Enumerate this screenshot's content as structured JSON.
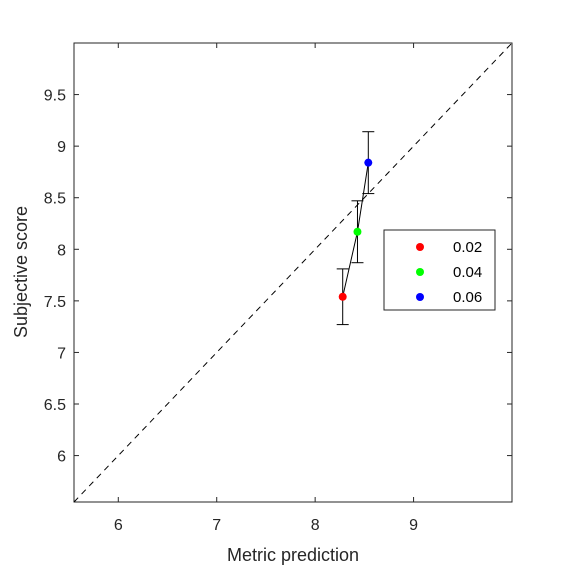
{
  "chart_data": {
    "type": "scatter",
    "title": "",
    "xlabel": "Metric prediction",
    "ylabel": "Subjective score",
    "xlim": [
      5.55,
      10.0
    ],
    "ylim": [
      5.55,
      10.0
    ],
    "x_ticks": [
      6,
      7,
      8,
      9
    ],
    "y_ticks": [
      6,
      6.5,
      7,
      7.5,
      8,
      8.5,
      9,
      9.5
    ],
    "x_tick_labels": [
      "6",
      "7",
      "8",
      "9"
    ],
    "y_tick_labels": [
      "6",
      "6.5",
      "7",
      "7.5",
      "8",
      "8.5",
      "9",
      "9.5"
    ],
    "grid": false,
    "reference_line": {
      "style": "dashed",
      "x": [
        5.55,
        10.0
      ],
      "y": [
        5.55,
        10.0
      ]
    },
    "connect_points": true,
    "series": [
      {
        "name": "0.02",
        "color": "#ff0000",
        "x": 8.28,
        "y": 7.54,
        "err": 0.27
      },
      {
        "name": "0.04",
        "color": "#00ff00",
        "x": 8.43,
        "y": 8.17,
        "err": 0.3
      },
      {
        "name": "0.06",
        "color": "#0000ff",
        "x": 8.54,
        "y": 8.84,
        "err": 0.3
      }
    ],
    "legend": {
      "position": "right",
      "entries": [
        "0.02",
        "0.04",
        "0.06"
      ]
    }
  }
}
